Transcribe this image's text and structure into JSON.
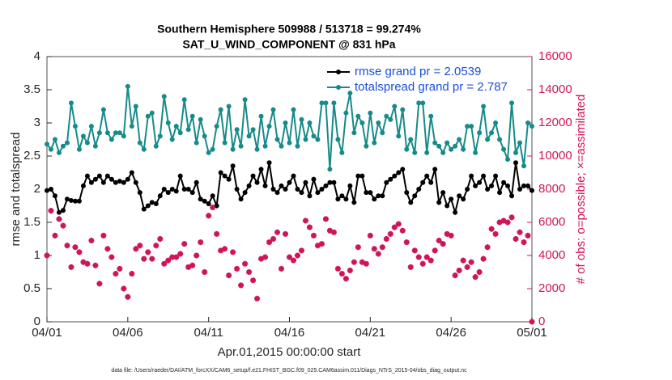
{
  "chart_data": {
    "type": "line",
    "title": "Southern Hemisphere 509988 / 513718 = 99.274%",
    "subtitle": "SAT_U_WIND_COMPONENT @ 831 hPa",
    "ylabel": "rmse and totalspread",
    "y2label": "# of obs: o=possible; ×=assimilated",
    "xlabel": "Apr.01,2015 00:00:00 start",
    "footnote": "data file: /Users/raeder/DAI/ATM_forcXX/CAM6_setup/f.e21.FHIST_BGC.f09_025.CAM6assim.011/Diags_NTrS_2015-04/obs_diag_output.nc",
    "legend": "upper right",
    "legend_color": "#1a4fd6",
    "xlim": [
      0,
      30
    ],
    "xticks": [
      {
        "value": 0,
        "label": "04/01"
      },
      {
        "value": 5,
        "label": "04/06"
      },
      {
        "value": 10,
        "label": "04/11"
      },
      {
        "value": 15,
        "label": "04/16"
      },
      {
        "value": 20,
        "label": "04/21"
      },
      {
        "value": 25,
        "label": "04/26"
      },
      {
        "value": 30,
        "label": "05/01"
      }
    ],
    "ylim": [
      0,
      4
    ],
    "yticks": [
      0,
      0.5,
      1,
      1.5,
      2,
      2.5,
      3,
      3.5,
      4
    ],
    "y2lim": [
      0,
      16000
    ],
    "y2ticks": [
      0,
      2000,
      4000,
      6000,
      8000,
      10000,
      12000,
      14000,
      16000
    ],
    "y2color": "#d0145a",
    "x": [
      0,
      0.25,
      0.5,
      0.75,
      1,
      1.25,
      1.5,
      1.75,
      2,
      2.25,
      2.5,
      2.75,
      3,
      3.25,
      3.5,
      3.75,
      4,
      4.25,
      4.5,
      4.75,
      5,
      5.25,
      5.5,
      5.75,
      6,
      6.25,
      6.5,
      6.75,
      7,
      7.25,
      7.5,
      7.75,
      8,
      8.25,
      8.5,
      8.75,
      9,
      9.25,
      9.5,
      9.75,
      10,
      10.25,
      10.5,
      10.75,
      11,
      11.25,
      11.5,
      11.75,
      12,
      12.25,
      12.5,
      12.75,
      13,
      13.25,
      13.5,
      13.75,
      14,
      14.25,
      14.5,
      14.75,
      15,
      15.25,
      15.5,
      15.75,
      16,
      16.25,
      16.5,
      16.75,
      17,
      17.25,
      17.5,
      17.75,
      18,
      18.25,
      18.5,
      18.75,
      19,
      19.25,
      19.5,
      19.75,
      20,
      20.25,
      20.5,
      20.75,
      21,
      21.25,
      21.5,
      21.75,
      22,
      22.25,
      22.5,
      22.75,
      23,
      23.25,
      23.5,
      23.75,
      24,
      24.25,
      24.5,
      24.75,
      25,
      25.25,
      25.5,
      25.75,
      26,
      26.25,
      26.5,
      26.75,
      27,
      27.25,
      27.5,
      27.75,
      28,
      28.25,
      28.5,
      28.75,
      29,
      29.25,
      29.5,
      29.75,
      30
    ],
    "series": [
      {
        "name": "rmse grand pr = 2.0539",
        "color": "#000000",
        "values": [
          1.98,
          2.0,
          1.9,
          1.65,
          1.68,
          1.85,
          1.83,
          1.82,
          1.82,
          2.05,
          2.2,
          2.1,
          2.15,
          2.2,
          2.1,
          2.2,
          2.15,
          2.1,
          2.12,
          2.1,
          2.15,
          2.25,
          2.1,
          1.95,
          1.7,
          1.75,
          1.8,
          1.78,
          1.9,
          2.0,
          1.95,
          2.0,
          1.97,
          2.2,
          2.0,
          2.0,
          1.95,
          2.1,
          1.85,
          1.82,
          1.78,
          1.9,
          1.75,
          2.25,
          2.2,
          2.15,
          2.35,
          2.0,
          1.85,
          1.95,
          2.05,
          2.2,
          2.1,
          2.3,
          2.05,
          2.4,
          2.0,
          1.95,
          2.05,
          2.0,
          2.1,
          2.2,
          2.0,
          1.95,
          2.1,
          1.9,
          2.15,
          1.95,
          2.0,
          2.05,
          2.1,
          2.1,
          1.85,
          1.9,
          1.85,
          2.05,
          1.8,
          2.2,
          2.2,
          1.95,
          1.95,
          1.85,
          1.9,
          1.9,
          2.1,
          2.15,
          2.2,
          2.25,
          2.3,
          1.95,
          1.8,
          1.9,
          2.0,
          2.1,
          2.2,
          2.1,
          2.3,
          1.8,
          1.95,
          1.75,
          1.85,
          1.65,
          1.9,
          1.85,
          2.0,
          2.2,
          2.05,
          2.1,
          2.2,
          2.0,
          2.05,
          2.2,
          1.95,
          2.1,
          2.05,
          1.9,
          2.4,
          2.0,
          2.05,
          2.05,
          1.98
        ]
      },
      {
        "name": "totalspread grand pr = 2.787",
        "color": "#178a8a",
        "values": [
          2.68,
          2.6,
          2.75,
          2.55,
          2.65,
          2.7,
          3.3,
          2.95,
          2.6,
          2.8,
          2.7,
          2.95,
          2.65,
          2.85,
          3.2,
          2.85,
          2.75,
          2.85,
          2.85,
          2.8,
          3.55,
          2.95,
          3.25,
          2.7,
          2.6,
          3.1,
          3.15,
          2.65,
          2.8,
          3.4,
          3.0,
          2.75,
          2.95,
          2.85,
          3.35,
          2.9,
          3.1,
          2.7,
          3.05,
          2.8,
          2.55,
          2.6,
          2.95,
          3.2,
          2.7,
          3.25,
          2.6,
          2.9,
          2.65,
          3.35,
          2.8,
          2.9,
          2.6,
          3.1,
          2.65,
          2.95,
          3.2,
          2.75,
          2.65,
          3.0,
          2.7,
          3.2,
          2.65,
          3.05,
          2.75,
          3.0,
          2.8,
          2.75,
          3.3,
          3.3,
          2.3,
          3.3,
          2.75,
          2.55,
          3.15,
          3.45,
          2.85,
          3.1,
          3.0,
          2.65,
          3.15,
          2.7,
          3.0,
          2.85,
          3.1,
          3.05,
          3.25,
          2.8,
          3.2,
          2.6,
          2.75,
          2.55,
          3.3,
          3.3,
          2.55,
          3.1,
          2.7,
          2.65,
          2.55,
          2.7,
          2.6,
          2.65,
          2.75,
          2.6,
          2.95,
          2.95,
          2.55,
          2.85,
          3.25,
          2.75,
          2.85,
          3.0,
          2.75,
          2.6,
          2.45,
          3.3,
          2.55,
          2.7,
          2.35,
          3.0,
          2.95
        ]
      },
      {
        "color": "#d0145a",
        "axis": "y2",
        "values": [
          4000,
          6700,
          5200,
          6200,
          5800,
          4600,
          3300,
          4500,
          4200,
          3600,
          3500,
          4900,
          3400,
          2300,
          5200,
          4400,
          3900,
          2900,
          3200,
          2000,
          1500,
          2900,
          4400,
          4600,
          3800,
          4200,
          3800,
          4600,
          5000,
          3500,
          3700,
          3900,
          3900,
          4100,
          4700,
          3300,
          3400,
          4000,
          4800,
          3000,
          6400,
          6900,
          5300,
          4300,
          4400,
          2800,
          4200,
          3200,
          2200,
          3500,
          3000,
          2500,
          1400,
          3800,
          3900,
          4800,
          5000,
          5400,
          3200,
          5300,
          3900,
          3700,
          4000,
          4300,
          6100,
          5700,
          5200,
          4600,
          4700,
          6200,
          5500,
          5400,
          3200,
          2900,
          2600,
          3100,
          3600,
          4500,
          3600,
          3500,
          5200,
          4400,
          4100,
          4500,
          5000,
          5300,
          5700,
          5900,
          5500,
          4800,
          3300,
          4300,
          3900,
          3500,
          3900,
          3700,
          4300,
          4900,
          4700,
          5300,
          5200,
          2800,
          3100,
          3700,
          3300,
          3600,
          2700,
          3000,
          3800,
          4500,
          5600,
          5300,
          6000,
          6100,
          6000,
          6300,
          5000,
          5400,
          4800,
          5200,
          0
        ]
      }
    ]
  }
}
